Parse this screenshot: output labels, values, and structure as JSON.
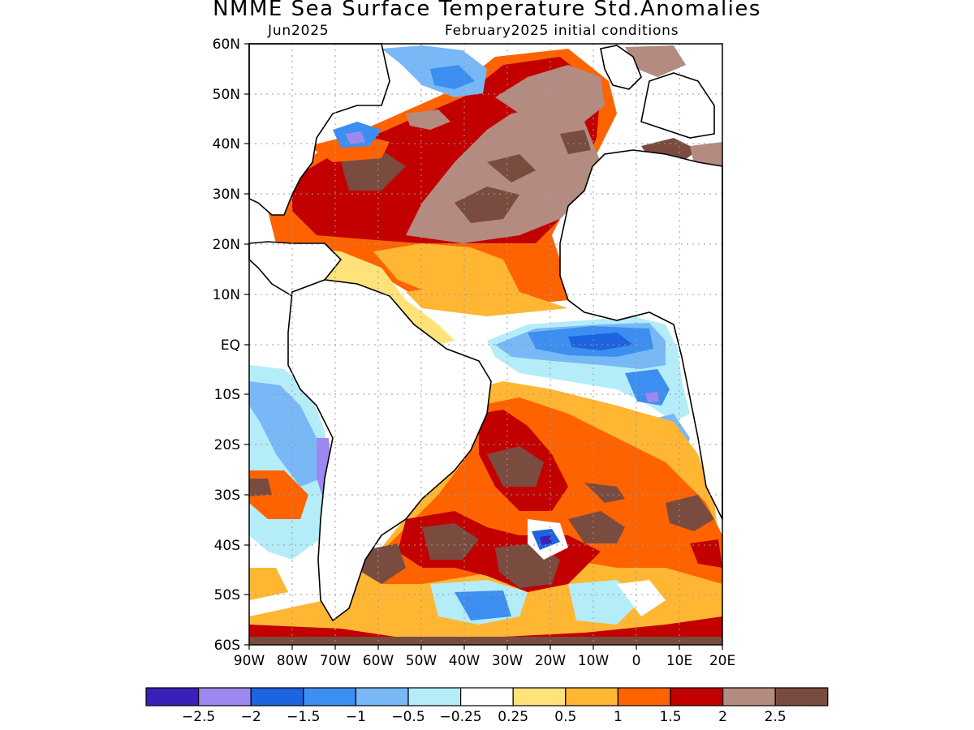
{
  "title": "NMME Sea Surface Temperature Std.Anomalies",
  "subtitle_left": "Jun2025",
  "subtitle_right": "February2025 initial conditions",
  "map": {
    "lon_range": [
      -90,
      20
    ],
    "lat_range": [
      -60,
      60
    ],
    "lon_ticks": [
      "90W",
      "80W",
      "70W",
      "60W",
      "50W",
      "40W",
      "30W",
      "20W",
      "10W",
      "0",
      "10E",
      "20E"
    ],
    "lat_ticks": [
      "60N",
      "50N",
      "40N",
      "30N",
      "20N",
      "10N",
      "EQ",
      "10S",
      "20S",
      "30S",
      "40S",
      "50S"
    ],
    "lat_tick_bottom": "60S",
    "gridlines": "dotted"
  },
  "colorbar": {
    "colors": [
      "#3a1fb8",
      "#9d88f0",
      "#1e63e0",
      "#3c8ff0",
      "#78b8f6",
      "#b4ecf8",
      "#ffffff",
      "#ffe27a",
      "#ffb632",
      "#ff6300",
      "#c20000",
      "#b48b80",
      "#7a4c40"
    ],
    "labels": [
      "−2.5",
      "−2",
      "−1.5",
      "−1",
      "−0.5",
      "−0.25",
      "0.25",
      "0.5",
      "1",
      "1.5",
      "2",
      "2.5"
    ]
  }
}
